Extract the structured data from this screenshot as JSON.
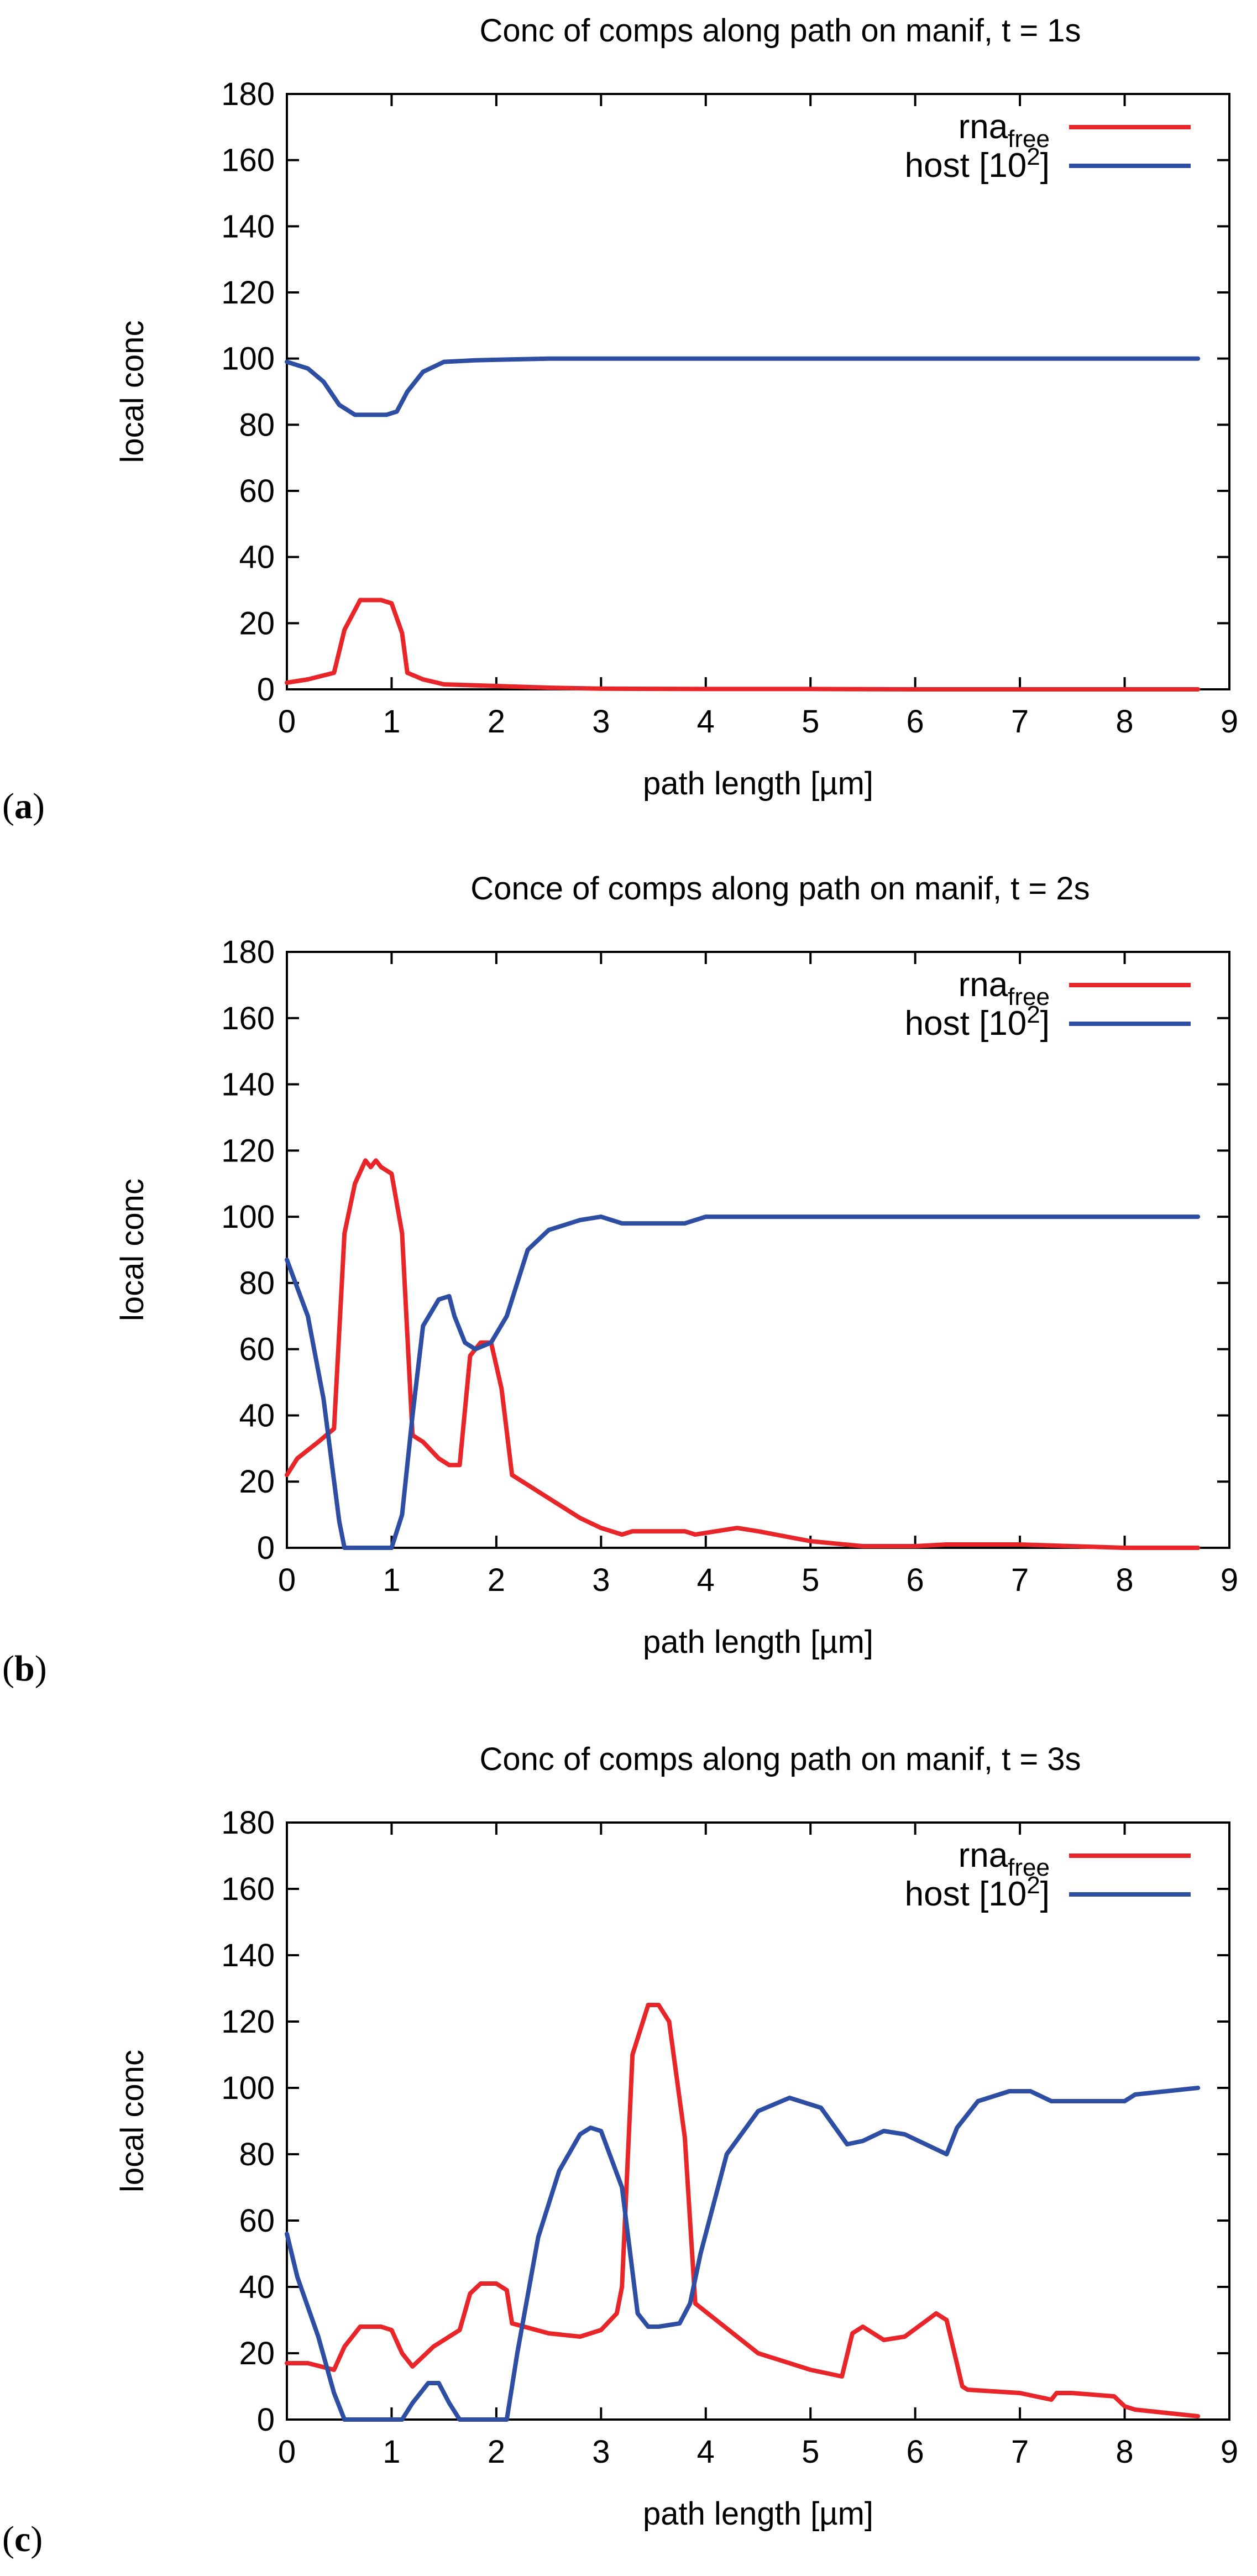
{
  "chart_data": [
    {
      "panel_label": "a",
      "type": "line",
      "title": "Conc of comps along path on manif, t = 1s",
      "xlabel": "path length [µm]",
      "ylabel": "local conc",
      "xlim": [
        0,
        9
      ],
      "ylim": [
        0,
        180
      ],
      "xticks": [
        0,
        1,
        2,
        3,
        4,
        5,
        6,
        7,
        8,
        9
      ],
      "yticks": [
        0,
        20,
        40,
        60,
        80,
        100,
        120,
        140,
        160,
        180
      ],
      "legend_position": "top-right",
      "series": [
        {
          "name": "rna",
          "name_subscript": "free",
          "color": "#e8262a",
          "x": [
            0,
            0.2,
            0.45,
            0.55,
            0.7,
            0.9,
            1.0,
            1.1,
            1.15,
            1.3,
            1.5,
            2.0,
            2.5,
            3.0,
            4.0,
            5.0,
            6.0,
            7.0,
            8.0,
            8.7
          ],
          "y": [
            2,
            3,
            5,
            18,
            27,
            27,
            26,
            17,
            5,
            3,
            1.5,
            1,
            0.5,
            0.2,
            0.1,
            0.1,
            0,
            0,
            0,
            0
          ]
        },
        {
          "name": "host [10",
          "name_superscript": "2",
          "name_suffix": "]",
          "color": "#2e4ea3",
          "x": [
            0,
            0.2,
            0.35,
            0.5,
            0.65,
            0.8,
            0.95,
            1.05,
            1.15,
            1.3,
            1.5,
            1.8,
            2.5,
            3.0,
            4.0,
            5.0,
            6.0,
            7.0,
            8.0,
            8.7
          ],
          "y": [
            99,
            97,
            93,
            86,
            83,
            83,
            83,
            84,
            90,
            96,
            99,
            99.5,
            100,
            100,
            100,
            100,
            100,
            100,
            100,
            100
          ]
        }
      ]
    },
    {
      "panel_label": "b",
      "type": "line",
      "title": "Conce of comps along path on manif, t = 2s",
      "xlabel": "path length [µm]",
      "ylabel": "local conc",
      "xlim": [
        0,
        9
      ],
      "ylim": [
        0,
        180
      ],
      "xticks": [
        0,
        1,
        2,
        3,
        4,
        5,
        6,
        7,
        8,
        9
      ],
      "yticks": [
        0,
        20,
        40,
        60,
        80,
        100,
        120,
        140,
        160,
        180
      ],
      "legend_position": "top-right",
      "series": [
        {
          "name": "rna",
          "name_subscript": "free",
          "color": "#e8262a",
          "x": [
            0,
            0.1,
            0.3,
            0.45,
            0.55,
            0.65,
            0.75,
            0.8,
            0.85,
            0.9,
            1.0,
            1.1,
            1.2,
            1.3,
            1.45,
            1.55,
            1.65,
            1.75,
            1.85,
            1.95,
            2.05,
            2.15,
            2.5,
            2.8,
            3.0,
            3.2,
            3.3,
            3.5,
            3.8,
            3.9,
            4.3,
            4.5,
            5.0,
            5.5,
            6.0,
            6.3,
            7.0,
            7.5,
            8.0,
            8.7
          ],
          "y": [
            22,
            27,
            32,
            36,
            95,
            110,
            117,
            115,
            117,
            115,
            113,
            95,
            34,
            32,
            27,
            25,
            25,
            58,
            62,
            62,
            48,
            22,
            15,
            9,
            6,
            4,
            5,
            5,
            5,
            4,
            6,
            5,
            2,
            0.5,
            0.5,
            1,
            1,
            0.5,
            0,
            0
          ]
        },
        {
          "name": "host [10",
          "name_superscript": "2",
          "name_suffix": "]",
          "color": "#2e4ea3",
          "x": [
            0,
            0.2,
            0.35,
            0.5,
            0.55,
            0.6,
            0.8,
            1.0,
            1.1,
            1.2,
            1.3,
            1.45,
            1.55,
            1.6,
            1.7,
            1.8,
            1.95,
            2.1,
            2.3,
            2.5,
            2.8,
            3.0,
            3.2,
            3.5,
            3.8,
            4.0,
            4.5,
            5.0,
            6.0,
            7.0,
            8.0,
            8.7
          ],
          "y": [
            87,
            70,
            45,
            8,
            0,
            0,
            0,
            0,
            10,
            40,
            67,
            75,
            76,
            70,
            62,
            60,
            62,
            70,
            90,
            96,
            99,
            100,
            98,
            98,
            98,
            100,
            100,
            100,
            100,
            100,
            100,
            100
          ]
        }
      ]
    },
    {
      "panel_label": "c",
      "type": "line",
      "title": "Conc of comps along path on manif, t = 3s",
      "xlabel": "path length [µm]",
      "ylabel": "local conc",
      "xlim": [
        0,
        9
      ],
      "ylim": [
        0,
        180
      ],
      "xticks": [
        0,
        1,
        2,
        3,
        4,
        5,
        6,
        7,
        8,
        9
      ],
      "yticks": [
        0,
        20,
        40,
        60,
        80,
        100,
        120,
        140,
        160,
        180
      ],
      "legend_position": "top-right",
      "series": [
        {
          "name": "rna",
          "name_subscript": "free",
          "color": "#e8262a",
          "x": [
            0,
            0.2,
            0.45,
            0.55,
            0.7,
            0.8,
            0.9,
            1.0,
            1.1,
            1.2,
            1.4,
            1.65,
            1.75,
            1.85,
            2.0,
            2.1,
            2.15,
            2.5,
            2.8,
            3.0,
            3.15,
            3.2,
            3.3,
            3.45,
            3.55,
            3.65,
            3.8,
            3.9,
            4.5,
            5.0,
            5.3,
            5.4,
            5.5,
            5.7,
            5.9,
            6.2,
            6.3,
            6.45,
            6.5,
            7.0,
            7.3,
            7.35,
            7.5,
            7.9,
            8.0,
            8.1,
            8.7
          ],
          "y": [
            17,
            17,
            15,
            22,
            28,
            28,
            28,
            27,
            20,
            16,
            22,
            27,
            38,
            41,
            41,
            39,
            29,
            26,
            25,
            27,
            32,
            40,
            110,
            125,
            125,
            120,
            85,
            35,
            20,
            15,
            13,
            26,
            28,
            24,
            25,
            32,
            30,
            10,
            9,
            8,
            6,
            8,
            8,
            7,
            4,
            3,
            1
          ]
        },
        {
          "name": "host [10",
          "name_superscript": "2",
          "name_suffix": "]",
          "color": "#2e4ea3",
          "x": [
            0,
            0.1,
            0.3,
            0.45,
            0.55,
            0.7,
            0.9,
            1.1,
            1.2,
            1.35,
            1.45,
            1.55,
            1.65,
            1.8,
            2.1,
            2.2,
            2.4,
            2.6,
            2.8,
            2.9,
            3.0,
            3.2,
            3.35,
            3.45,
            3.55,
            3.75,
            3.85,
            3.95,
            4.2,
            4.5,
            4.8,
            5.1,
            5.35,
            5.5,
            5.7,
            5.9,
            6.1,
            6.3,
            6.4,
            6.6,
            6.9,
            7.1,
            7.3,
            7.5,
            7.9,
            8.0,
            8.1,
            8.4,
            8.7
          ],
          "y": [
            56,
            43,
            25,
            8,
            0,
            0,
            0,
            0,
            5,
            11,
            11,
            5,
            0,
            0,
            0,
            20,
            55,
            75,
            86,
            88,
            87,
            70,
            32,
            28,
            28,
            29,
            35,
            50,
            80,
            93,
            97,
            94,
            83,
            84,
            87,
            86,
            83,
            80,
            88,
            96,
            99,
            99,
            96,
            96,
            96,
            96,
            98,
            99,
            100
          ]
        }
      ]
    }
  ]
}
